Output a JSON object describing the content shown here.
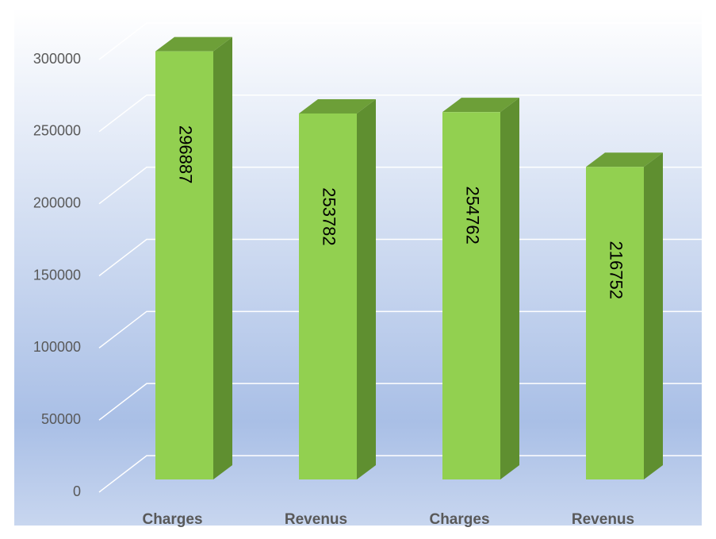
{
  "chart_data": {
    "type": "bar3d",
    "categories": [
      "Charges",
      "Revenus",
      "Charges",
      "Revenus"
    ],
    "values": [
      296887,
      253782,
      254762,
      216752
    ],
    "color": "#92d050",
    "ylim": [
      0,
      300000
    ],
    "yticks": [
      0,
      50000,
      100000,
      150000,
      200000,
      250000,
      300000
    ],
    "grid": true
  }
}
